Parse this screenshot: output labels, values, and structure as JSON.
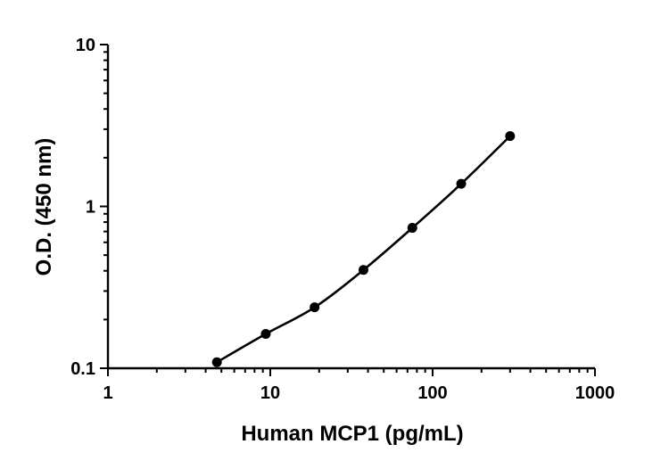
{
  "chart_data": {
    "type": "scatter",
    "title": "",
    "xlabel": "Human MCP1 (pg/mL)",
    "ylabel": "O.D. (450 nm)",
    "xscale": "log",
    "yscale": "log",
    "xlim": [
      1,
      1000
    ],
    "ylim": [
      0.1,
      10
    ],
    "xticks": [
      "1",
      "10",
      "100",
      "1000"
    ],
    "yticks": [
      "0.1",
      "1",
      "10"
    ],
    "grid": false,
    "legend": "none",
    "series": [
      {
        "x": [
          4.69,
          9.38,
          18.75,
          37.5,
          75,
          150,
          300
        ],
        "y": [
          0.109,
          0.163,
          0.238,
          0.405,
          0.737,
          1.38,
          2.72
        ],
        "fit_curve": true
      }
    ],
    "colors": {
      "marker": "#000000",
      "line": "#000000",
      "axis": "#000000"
    }
  }
}
